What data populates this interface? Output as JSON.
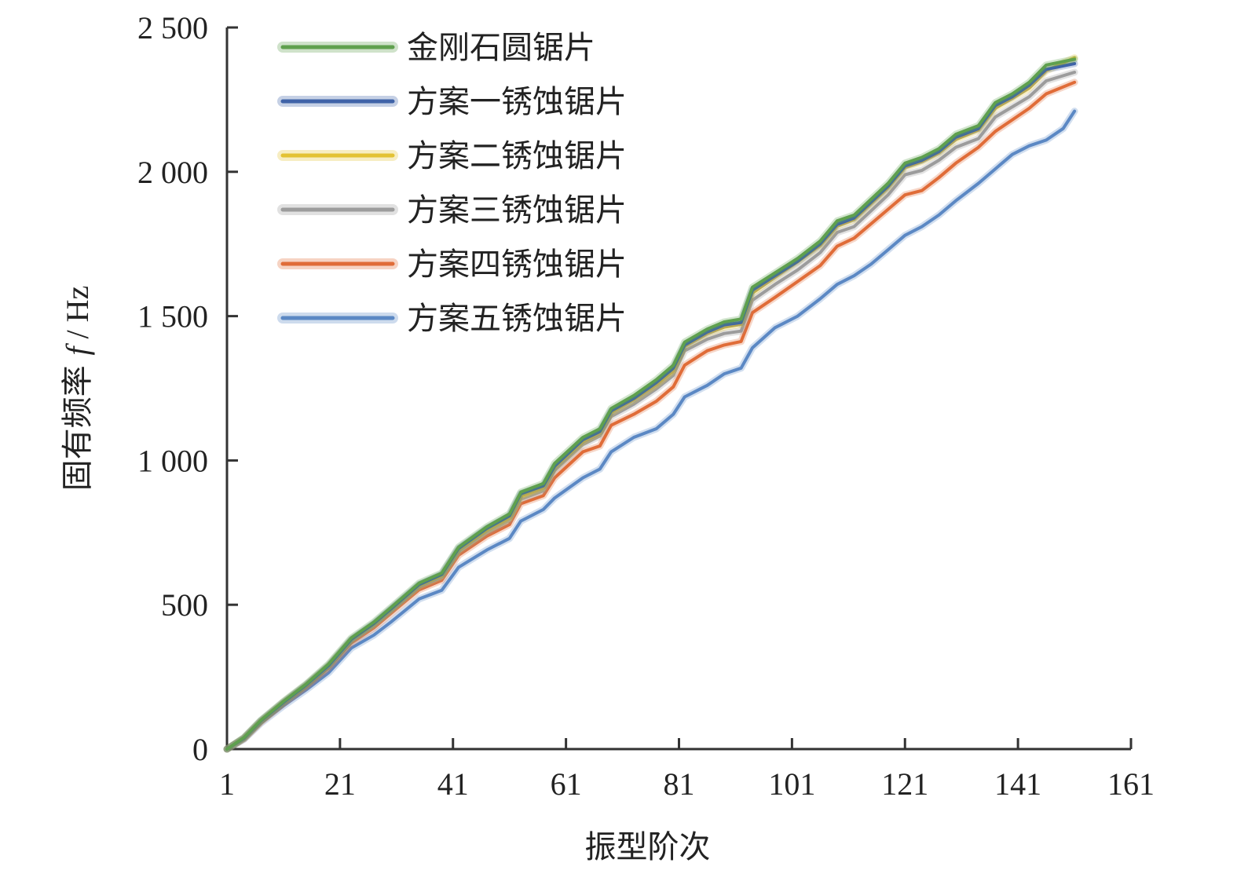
{
  "chart_data": {
    "type": "line",
    "xlabel": "振型阶次",
    "ylabel": "固有频率 f / Hz",
    "ylabel_prefix": "固有频率 ",
    "ylabel_var": "f",
    "ylabel_unit": " / Hz",
    "xlim": [
      1,
      161
    ],
    "ylim": [
      0,
      2500
    ],
    "x_ticks": [
      1,
      21,
      41,
      61,
      81,
      101,
      121,
      141,
      161
    ],
    "y_ticks": [
      0,
      500,
      1000,
      1500,
      2000,
      2500
    ],
    "y_tick_labels": [
      "0",
      "500",
      "1 000",
      "1 500",
      "2 000",
      "2 500"
    ],
    "legend_position": "top-left",
    "grid": false,
    "series": [
      {
        "name": "金刚石圆锯片",
        "color": "#5fa04e",
        "points": [
          [
            1,
            0
          ],
          [
            4,
            40
          ],
          [
            7,
            100
          ],
          [
            11,
            165
          ],
          [
            15,
            225
          ],
          [
            19,
            295
          ],
          [
            23,
            385
          ],
          [
            27,
            440
          ],
          [
            30,
            490
          ],
          [
            35,
            575
          ],
          [
            39,
            610
          ],
          [
            42,
            700
          ],
          [
            47,
            770
          ],
          [
            51,
            815
          ],
          [
            53,
            890
          ],
          [
            57,
            920
          ],
          [
            59,
            990
          ],
          [
            64,
            1080
          ],
          [
            67,
            1110
          ],
          [
            69,
            1180
          ],
          [
            73,
            1225
          ],
          [
            77,
            1280
          ],
          [
            80,
            1330
          ],
          [
            82,
            1410
          ],
          [
            86,
            1455
          ],
          [
            89,
            1480
          ],
          [
            92,
            1490
          ],
          [
            94,
            1600
          ],
          [
            98,
            1650
          ],
          [
            102,
            1700
          ],
          [
            106,
            1760
          ],
          [
            109,
            1830
          ],
          [
            112,
            1850
          ],
          [
            115,
            1905
          ],
          [
            118,
            1960
          ],
          [
            121,
            2030
          ],
          [
            124,
            2050
          ],
          [
            127,
            2080
          ],
          [
            130,
            2130
          ],
          [
            134,
            2160
          ],
          [
            137,
            2240
          ],
          [
            140,
            2270
          ],
          [
            143,
            2310
          ],
          [
            146,
            2370
          ],
          [
            151,
            2390
          ]
        ]
      },
      {
        "name": "方案一锈蚀锯片",
        "color": "#3f63a8",
        "points": [
          [
            1,
            0
          ],
          [
            4,
            38
          ],
          [
            7,
            98
          ],
          [
            11,
            162
          ],
          [
            15,
            222
          ],
          [
            19,
            290
          ],
          [
            23,
            380
          ],
          [
            27,
            435
          ],
          [
            30,
            485
          ],
          [
            35,
            570
          ],
          [
            39,
            605
          ],
          [
            42,
            695
          ],
          [
            47,
            765
          ],
          [
            51,
            808
          ],
          [
            53,
            885
          ],
          [
            57,
            912
          ],
          [
            59,
            980
          ],
          [
            64,
            1072
          ],
          [
            67,
            1100
          ],
          [
            69,
            1172
          ],
          [
            73,
            1215
          ],
          [
            77,
            1270
          ],
          [
            80,
            1320
          ],
          [
            82,
            1400
          ],
          [
            86,
            1445
          ],
          [
            89,
            1470
          ],
          [
            92,
            1478
          ],
          [
            94,
            1590
          ],
          [
            98,
            1640
          ],
          [
            102,
            1690
          ],
          [
            106,
            1750
          ],
          [
            109,
            1818
          ],
          [
            112,
            1840
          ],
          [
            115,
            1895
          ],
          [
            118,
            1950
          ],
          [
            121,
            2020
          ],
          [
            124,
            2040
          ],
          [
            127,
            2070
          ],
          [
            130,
            2120
          ],
          [
            134,
            2150
          ],
          [
            137,
            2230
          ],
          [
            140,
            2260
          ],
          [
            143,
            2300
          ],
          [
            146,
            2355
          ],
          [
            151,
            2375
          ]
        ]
      },
      {
        "name": "方案二锈蚀锯片",
        "color": "#e3c234",
        "points": [
          [
            1,
            0
          ],
          [
            4,
            38
          ],
          [
            7,
            97
          ],
          [
            11,
            162
          ],
          [
            15,
            222
          ],
          [
            19,
            290
          ],
          [
            23,
            378
          ],
          [
            27,
            432
          ],
          [
            30,
            482
          ],
          [
            35,
            566
          ],
          [
            39,
            600
          ],
          [
            42,
            690
          ],
          [
            47,
            758
          ],
          [
            51,
            800
          ],
          [
            53,
            875
          ],
          [
            57,
            905
          ],
          [
            59,
            975
          ],
          [
            64,
            1065
          ],
          [
            67,
            1095
          ],
          [
            69,
            1165
          ],
          [
            73,
            1210
          ],
          [
            77,
            1262
          ],
          [
            80,
            1310
          ],
          [
            82,
            1395
          ],
          [
            86,
            1440
          ],
          [
            89,
            1462
          ],
          [
            92,
            1472
          ],
          [
            94,
            1580
          ],
          [
            98,
            1635
          ],
          [
            102,
            1688
          ],
          [
            106,
            1745
          ],
          [
            109,
            1812
          ],
          [
            112,
            1835
          ],
          [
            115,
            1890
          ],
          [
            118,
            1945
          ],
          [
            121,
            2015
          ],
          [
            124,
            2035
          ],
          [
            127,
            2065
          ],
          [
            130,
            2112
          ],
          [
            134,
            2145
          ],
          [
            137,
            2220
          ],
          [
            140,
            2255
          ],
          [
            143,
            2290
          ],
          [
            146,
            2350
          ],
          [
            151,
            2395
          ]
        ]
      },
      {
        "name": "方案三锈蚀锯片",
        "color": "#9c9c9c",
        "points": [
          [
            1,
            0
          ],
          [
            4,
            37
          ],
          [
            7,
            96
          ],
          [
            11,
            160
          ],
          [
            15,
            220
          ],
          [
            19,
            286
          ],
          [
            23,
            374
          ],
          [
            27,
            428
          ],
          [
            30,
            478
          ],
          [
            35,
            562
          ],
          [
            39,
            595
          ],
          [
            42,
            683
          ],
          [
            47,
            750
          ],
          [
            51,
            792
          ],
          [
            53,
            866
          ],
          [
            57,
            895
          ],
          [
            59,
            965
          ],
          [
            64,
            1055
          ],
          [
            67,
            1085
          ],
          [
            69,
            1152
          ],
          [
            73,
            1195
          ],
          [
            77,
            1248
          ],
          [
            80,
            1295
          ],
          [
            82,
            1380
          ],
          [
            86,
            1420
          ],
          [
            89,
            1440
          ],
          [
            92,
            1448
          ],
          [
            94,
            1555
          ],
          [
            98,
            1610
          ],
          [
            102,
            1660
          ],
          [
            106,
            1720
          ],
          [
            109,
            1790
          ],
          [
            112,
            1810
          ],
          [
            115,
            1865
          ],
          [
            118,
            1920
          ],
          [
            121,
            1990
          ],
          [
            124,
            2005
          ],
          [
            127,
            2040
          ],
          [
            130,
            2085
          ],
          [
            134,
            2115
          ],
          [
            137,
            2190
          ],
          [
            140,
            2225
          ],
          [
            143,
            2260
          ],
          [
            146,
            2315
          ],
          [
            151,
            2345
          ]
        ]
      },
      {
        "name": "方案四锈蚀锯片",
        "color": "#e06c38",
        "points": [
          [
            1,
            0
          ],
          [
            4,
            36
          ],
          [
            7,
            94
          ],
          [
            11,
            158
          ],
          [
            15,
            216
          ],
          [
            19,
            282
          ],
          [
            23,
            368
          ],
          [
            27,
            420
          ],
          [
            30,
            470
          ],
          [
            35,
            552
          ],
          [
            39,
            585
          ],
          [
            42,
            672
          ],
          [
            47,
            738
          ],
          [
            51,
            778
          ],
          [
            53,
            850
          ],
          [
            57,
            878
          ],
          [
            59,
            940
          ],
          [
            64,
            1030
          ],
          [
            67,
            1050
          ],
          [
            69,
            1122
          ],
          [
            73,
            1160
          ],
          [
            77,
            1205
          ],
          [
            80,
            1255
          ],
          [
            82,
            1330
          ],
          [
            86,
            1380
          ],
          [
            89,
            1400
          ],
          [
            92,
            1412
          ],
          [
            94,
            1512
          ],
          [
            98,
            1565
          ],
          [
            102,
            1620
          ],
          [
            106,
            1675
          ],
          [
            109,
            1742
          ],
          [
            112,
            1770
          ],
          [
            115,
            1820
          ],
          [
            118,
            1870
          ],
          [
            121,
            1920
          ],
          [
            124,
            1935
          ],
          [
            127,
            1980
          ],
          [
            130,
            2030
          ],
          [
            134,
            2085
          ],
          [
            137,
            2140
          ],
          [
            140,
            2180
          ],
          [
            143,
            2220
          ],
          [
            146,
            2270
          ],
          [
            151,
            2310
          ]
        ]
      },
      {
        "name": "方案五锈蚀锯片",
        "color": "#5b88c4",
        "points": [
          [
            1,
            0
          ],
          [
            4,
            34
          ],
          [
            7,
            90
          ],
          [
            11,
            150
          ],
          [
            15,
            205
          ],
          [
            19,
            265
          ],
          [
            23,
            350
          ],
          [
            27,
            395
          ],
          [
            30,
            440
          ],
          [
            35,
            520
          ],
          [
            39,
            550
          ],
          [
            42,
            630
          ],
          [
            47,
            690
          ],
          [
            51,
            730
          ],
          [
            53,
            790
          ],
          [
            57,
            830
          ],
          [
            59,
            870
          ],
          [
            64,
            940
          ],
          [
            67,
            970
          ],
          [
            69,
            1030
          ],
          [
            73,
            1080
          ],
          [
            77,
            1110
          ],
          [
            80,
            1160
          ],
          [
            82,
            1220
          ],
          [
            86,
            1260
          ],
          [
            89,
            1300
          ],
          [
            92,
            1320
          ],
          [
            94,
            1390
          ],
          [
            98,
            1460
          ],
          [
            102,
            1500
          ],
          [
            106,
            1560
          ],
          [
            109,
            1610
          ],
          [
            112,
            1640
          ],
          [
            115,
            1680
          ],
          [
            118,
            1730
          ],
          [
            121,
            1780
          ],
          [
            124,
            1810
          ],
          [
            127,
            1850
          ],
          [
            130,
            1900
          ],
          [
            134,
            1960
          ],
          [
            137,
            2010
          ],
          [
            140,
            2060
          ],
          [
            143,
            2090
          ],
          [
            146,
            2110
          ],
          [
            149,
            2150
          ],
          [
            151,
            2210
          ]
        ]
      }
    ]
  }
}
